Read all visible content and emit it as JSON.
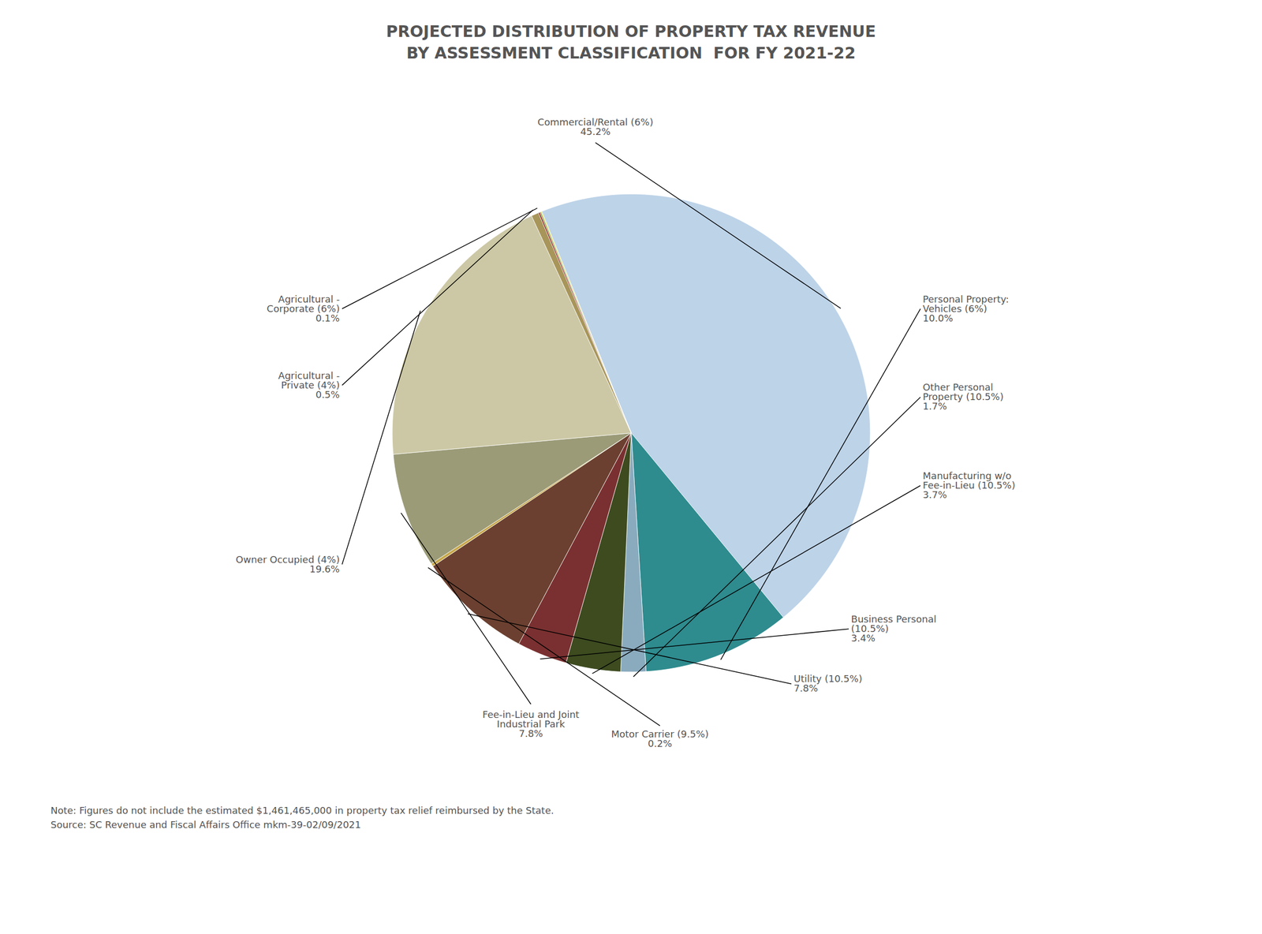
{
  "chart_data": {
    "type": "pie",
    "title": "PROJECTED DISTRIBUTION OF PROPERTY TAX REVENUE\nBY ASSESSMENT CLASSIFICATION  FOR FY 2021-22",
    "categories": [
      "Commercial/Rental (6%)\n45.2%",
      "Personal Property:\nVehicles (6%)\n10.0%",
      "Other Personal\nProperty (10.5%)\n1.7%",
      "Manufacturing w/o\nFee-in-Lieu (10.5%)\n3.7%",
      "Business Personal\n(10.5%)\n3.4%",
      "Utility (10.5%)\n7.8%",
      "Motor Carrier (9.5%)\n0.2%",
      "Fee-in-Lieu and Joint\nIndustrial Park\n7.8%",
      "Owner Occupied (4%)\n19.6%",
      "Agricultural -\nPrivate (4%)\n0.5%",
      "Agricultural -\nCorporate (6%)\n0.1%",
      null,
      null
    ],
    "values": [
      45.2,
      10.0,
      1.7,
      3.7,
      3.4,
      7.8,
      0.2,
      7.8,
      19.6,
      0.5,
      0.1,
      0.08,
      0.06
    ],
    "colors": [
      "#bdd3e8",
      "#2e8b8e",
      "#8aabbe",
      "#3d4b1f",
      "#7a3030",
      "#6b4030",
      "#c8a84b",
      "#9b9b78",
      "#ccc8a5",
      "#a8955a",
      "#8c2020",
      "#6e8c30",
      "#e0d830"
    ],
    "annotations": [
      "Note: Figures do not include the estimated $1,461,465,000 in property tax relief reimbursed by the State.",
      "Source: SC Revenue and Fiscal Affairs Office mkm-39-02/09/2021"
    ]
  }
}
